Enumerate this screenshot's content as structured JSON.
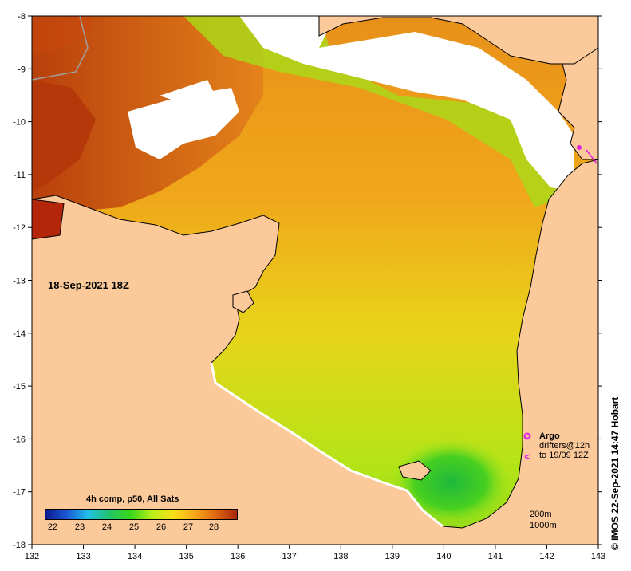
{
  "map": {
    "date_label": "18-Sep-2021 18Z",
    "lon_ticks": [
      "132",
      "133",
      "134",
      "135",
      "136",
      "137",
      "138",
      "139",
      "140",
      "141",
      "142",
      "143"
    ],
    "lat_ticks": [
      "-8",
      "-9",
      "-10",
      "-11",
      "-12",
      "-13",
      "-14",
      "-15",
      "-16",
      "-17",
      "-18"
    ],
    "colorbar": {
      "title": "4h comp, p50, All Sats",
      "ticks": [
        "22",
        "23",
        "24",
        "25",
        "26",
        "27",
        "28"
      ]
    },
    "legend": {
      "argo_symbol": "✪",
      "argo_label": "Argo",
      "drifter_symbol": "<",
      "drifter_line1": "drifters@12h",
      "drifter_line2": "to 19/09 12Z"
    },
    "depth_contours": [
      "200m",
      "1000m"
    ],
    "credit": "IMOS 22-Sep-2021 14:47 Hobart",
    "copyright_symbol": "©",
    "colors": {
      "land": "#fcc99b",
      "no_data": "#ffffff",
      "sst_warm": "#c84a0e",
      "sst_mid": "#f4a41a",
      "sst_cool": "#b8e418",
      "sst_coolest": "#20c040",
      "argo": "#e020e0"
    }
  }
}
